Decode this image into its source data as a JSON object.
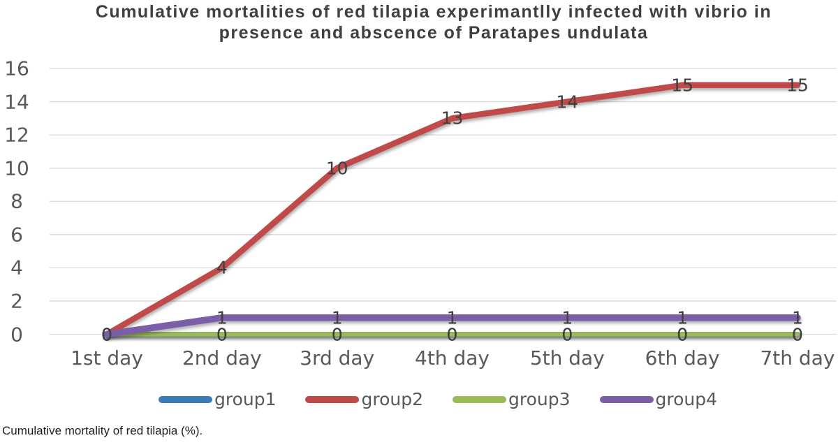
{
  "title": {
    "line1": "Cumulative mortalities of red tilapia experimantlly infected with vibrio in",
    "line2": "presence and abscence of Paratapes undulata"
  },
  "caption": "Cumulative mortality of red tilapia (%).",
  "chart_data": {
    "type": "line",
    "categories": [
      "1st day",
      "2nd day",
      "3rd day",
      "4th day",
      "5th day",
      "6th day",
      "7th day"
    ],
    "series": [
      {
        "name": "group1",
        "color": "#3D7BB5",
        "values": [
          0,
          0,
          0,
          0,
          0,
          0,
          0
        ]
      },
      {
        "name": "group2",
        "color": "#C04A48",
        "values": [
          0,
          4,
          10,
          13,
          14,
          15,
          15
        ]
      },
      {
        "name": "group3",
        "color": "#9BBB59",
        "values": [
          0,
          0,
          0,
          0,
          0,
          0,
          0
        ]
      },
      {
        "name": "group4",
        "color": "#7A5FA6",
        "values": [
          0,
          1,
          1,
          1,
          1,
          1,
          1
        ]
      }
    ],
    "ylim": [
      0,
      16
    ],
    "yticks": [
      0,
      2,
      4,
      6,
      8,
      10,
      12,
      14,
      16
    ],
    "grid": true,
    "legend_position": "bottom",
    "data_labels": true
  }
}
